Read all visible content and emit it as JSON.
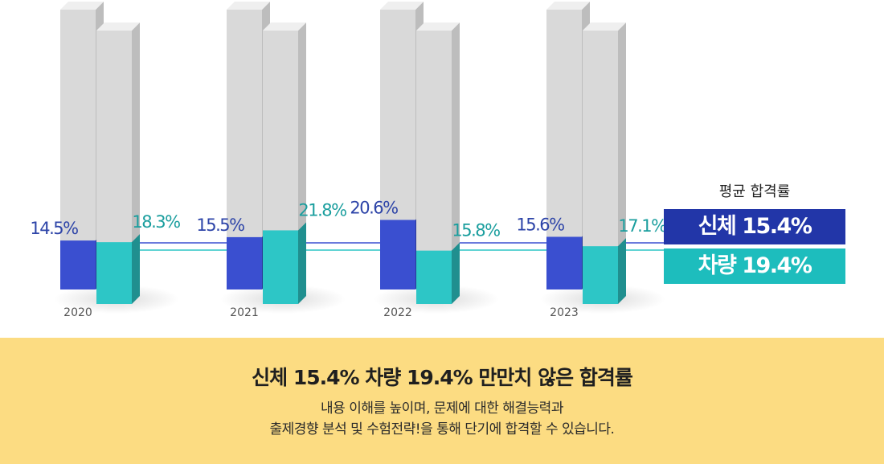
{
  "chart_data": {
    "type": "bar",
    "categories": [
      "2020",
      "2021",
      "2022",
      "2023"
    ],
    "series": [
      {
        "name": "신체",
        "values": [
          14.5,
          15.5,
          20.6,
          15.6
        ],
        "labels": [
          "14.5%",
          "15.5%",
          "20.6%",
          "15.6%"
        ],
        "color": "#3a4fd0",
        "label_color": "#2d44a8"
      },
      {
        "name": "차량",
        "values": [
          18.3,
          21.8,
          15.8,
          17.1
        ],
        "labels": [
          "18.3%",
          "21.8%",
          "15.8%",
          "17.1%"
        ],
        "color": "#2dc6c6",
        "label_color": "#1a9e9e"
      }
    ],
    "average": {
      "title": "평균 합격률",
      "body_label": "신체 15.4%",
      "vehicle_label": "차량 19.4%",
      "body_value": 15.4,
      "vehicle_value": 19.4,
      "body_color": "#2236a8",
      "vehicle_color": "#1dbdbd"
    }
  },
  "footer": {
    "headline": "신체 15.4% 차량 19.4% 만만치 않은 합격률",
    "line1": "내용 이해를 높이며, 문제에 대한 해결능력과",
    "line2": "출제경향 분석 및 수험전략!을 통해 단기에 합격할 수 있습니다.",
    "background": "#fcdc82"
  }
}
